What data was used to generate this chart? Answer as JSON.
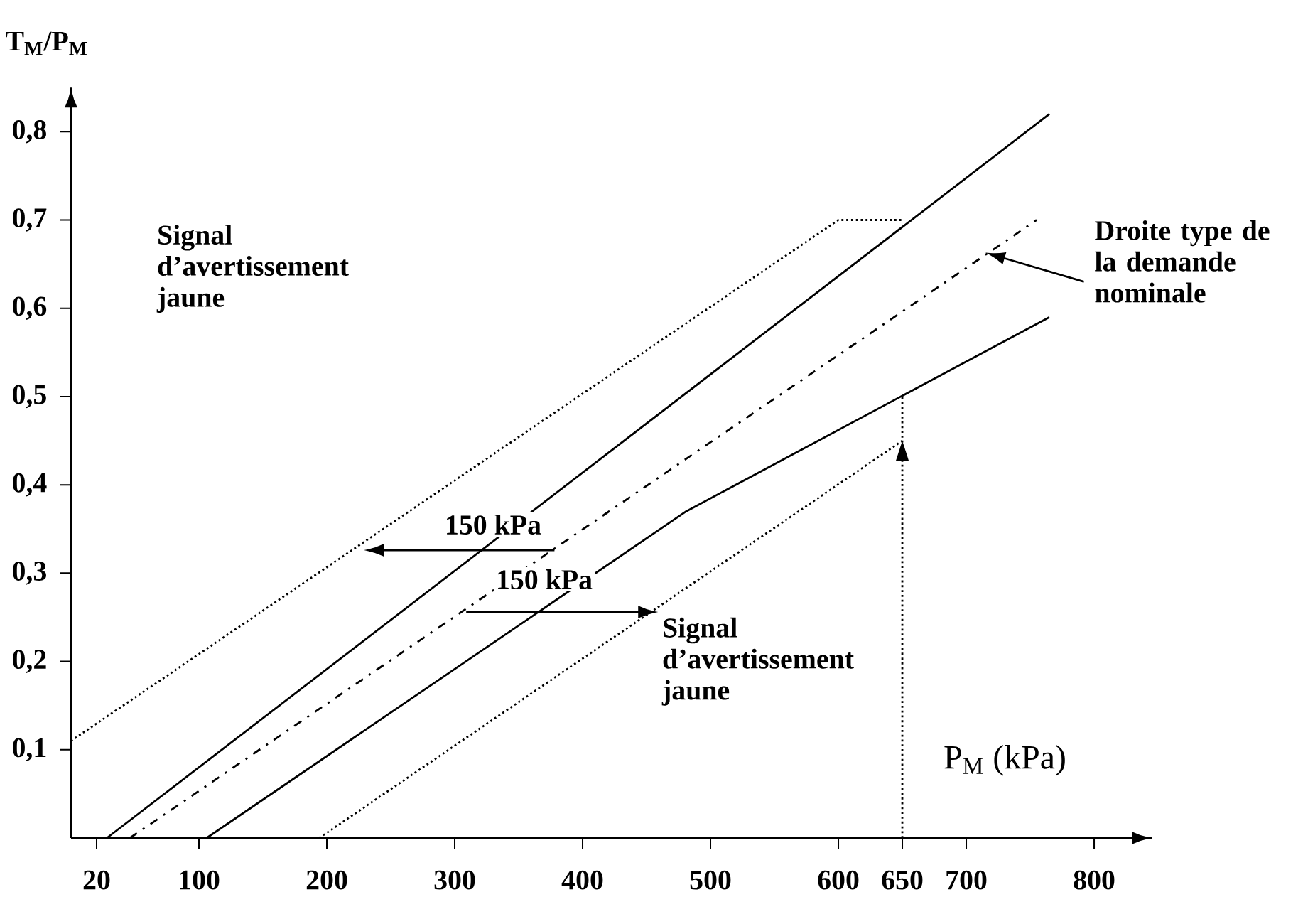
{
  "chart_data": {
    "type": "line",
    "xlabel": "P$_{M}$ (kPa)",
    "ylabel": "T$_{M}$/P$_{M}$",
    "xlim": [
      0,
      845
    ],
    "ylim": [
      0,
      0.85
    ],
    "xticks": [
      {
        "value": 20,
        "label": "20"
      },
      100,
      200,
      300,
      400,
      500,
      600,
      650,
      700,
      800
    ],
    "yticks": [
      {
        "value": 0.1,
        "label": "0,1"
      },
      {
        "value": 0.2,
        "label": "0,2"
      },
      {
        "value": 0.3,
        "label": "0,3"
      },
      {
        "value": 0.4,
        "label": "0,4"
      },
      {
        "value": 0.5,
        "label": "0,5"
      },
      {
        "value": 0.6,
        "label": "0,6"
      },
      {
        "value": 0.7,
        "label": "0,7"
      },
      {
        "value": 0.8,
        "label": "0,8"
      }
    ],
    "series": [
      {
        "color": "#000000",
        "line_style": "solid",
        "x": [
          28,
          765
        ],
        "values": [
          0,
          0.82
        ]
      },
      {
        "color": "#000000",
        "line_style": "dashed",
        "x": [
          46,
          755
        ],
        "values": [
          0,
          0.7
        ]
      },
      {
        "color": "#000000",
        "line_style": "solid",
        "x": [
          106,
          481,
          765
        ],
        "values": [
          0,
          0.37,
          0.59
        ]
      },
      {
        "color": "#000000",
        "line_style": "dotted",
        "x": [
          0,
          600,
          650
        ],
        "values": [
          0.11,
          0.7,
          0.7
        ]
      },
      {
        "color": "#000000",
        "line_style": "dotted",
        "x": [
          194,
          650
        ],
        "values": [
          0,
          0.45
        ]
      },
      {
        "color": "#000000",
        "line_style": "dotted",
        "x": [
          650,
          650
        ],
        "values": [
          0,
          0.5
        ]
      }
    ],
    "annotations": [
      "Signal d’avertissement jaune",
      "150 kPa",
      "150 kPa",
      {
        "text": "Signal d’avertissement jaune",
        "x": 459,
        "y": 0.256
      },
      "Droite type de la demande nominale"
    ]
  }
}
